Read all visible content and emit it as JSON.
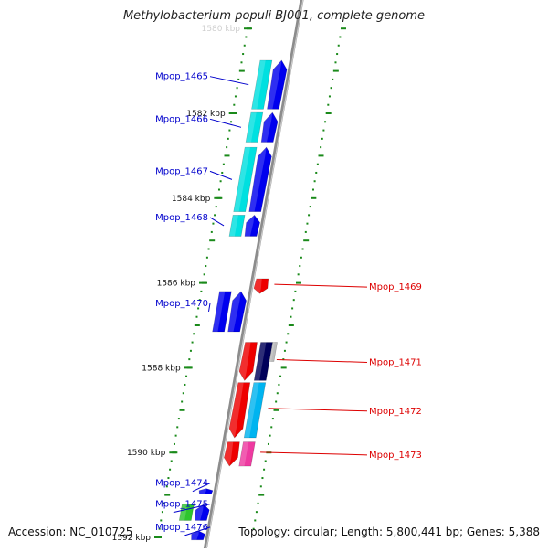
{
  "title": "Methylobacterium populi BJ001, complete genome",
  "footer": {
    "accession": "Accession: NC_010725",
    "summary": "Topology: circular; Length: 5,800,441 bp; Genes: 5,388"
  },
  "colors": {
    "backbone": "#8c8c8c",
    "tick": "#1a8a1a",
    "label_forward": "#0000cc",
    "label_reverse": "#dd0000",
    "gene_blue": "#0000ee",
    "gene_cyan": "#00e0e0",
    "gene_red": "#ee0000",
    "gene_navy": "#00005a",
    "gene_grey": "#bbbbbb",
    "gene_skyblue": "#00b4f0",
    "gene_pink": "#ee3aa0",
    "gene_green": "#2ec52e",
    "gene_khaki": "#bcb07a"
  },
  "kbp_labels": [
    {
      "text": "1580 kbp",
      "kbp": 1580
    },
    {
      "text": "1582 kbp",
      "kbp": 1582
    },
    {
      "text": "1584 kbp",
      "kbp": 1584
    },
    {
      "text": "1586 kbp",
      "kbp": 1586
    },
    {
      "text": "1588 kbp",
      "kbp": 1588
    },
    {
      "text": "1590 kbp",
      "kbp": 1590
    },
    {
      "text": "1592 kbp",
      "kbp": 1592
    }
  ],
  "genes": [
    {
      "id": "Mpop_1465",
      "label": "Mpop_1465",
      "strand": "+",
      "start_kbp": 1580.75,
      "end_kbp": 1581.9
    },
    {
      "id": "Mpop_1466",
      "label": "Mpop_1466",
      "strand": "+",
      "start_kbp": 1581.98,
      "end_kbp": 1582.68
    },
    {
      "id": "Mpop_1467",
      "label": "Mpop_1467",
      "strand": "+",
      "start_kbp": 1582.8,
      "end_kbp": 1584.32
    },
    {
      "id": "Mpop_1468",
      "label": "Mpop_1468",
      "strand": "+",
      "start_kbp": 1584.4,
      "end_kbp": 1584.9
    },
    {
      "id": "Mpop_1469",
      "label": "Mpop_1469",
      "strand": "-",
      "start_kbp": 1585.9,
      "end_kbp": 1586.25
    },
    {
      "id": "Mpop_1470",
      "label": "Mpop_1470",
      "strand": "+",
      "start_kbp": 1586.2,
      "end_kbp": 1587.15
    },
    {
      "id": "Mpop_1471",
      "label": "Mpop_1471",
      "strand": "-",
      "start_kbp": 1587.4,
      "end_kbp": 1588.3
    },
    {
      "id": "Mpop_1472",
      "label": "Mpop_1472",
      "strand": "-",
      "start_kbp": 1588.35,
      "end_kbp": 1589.65
    },
    {
      "id": "Mpop_1473",
      "label": "Mpop_1473",
      "strand": "-",
      "start_kbp": 1589.75,
      "end_kbp": 1590.32
    },
    {
      "id": "Mpop_1474",
      "label": "Mpop_1474",
      "strand": "+",
      "start_kbp": 1590.85,
      "end_kbp": 1590.98
    },
    {
      "id": "Mpop_1475",
      "label": "Mpop_1475",
      "strand": "+",
      "start_kbp": 1591.22,
      "end_kbp": 1591.6
    },
    {
      "id": "Mpop_1476",
      "label": "Mpop_1476",
      "strand": "+",
      "start_kbp": 1591.85,
      "end_kbp": 1592.06
    }
  ]
}
